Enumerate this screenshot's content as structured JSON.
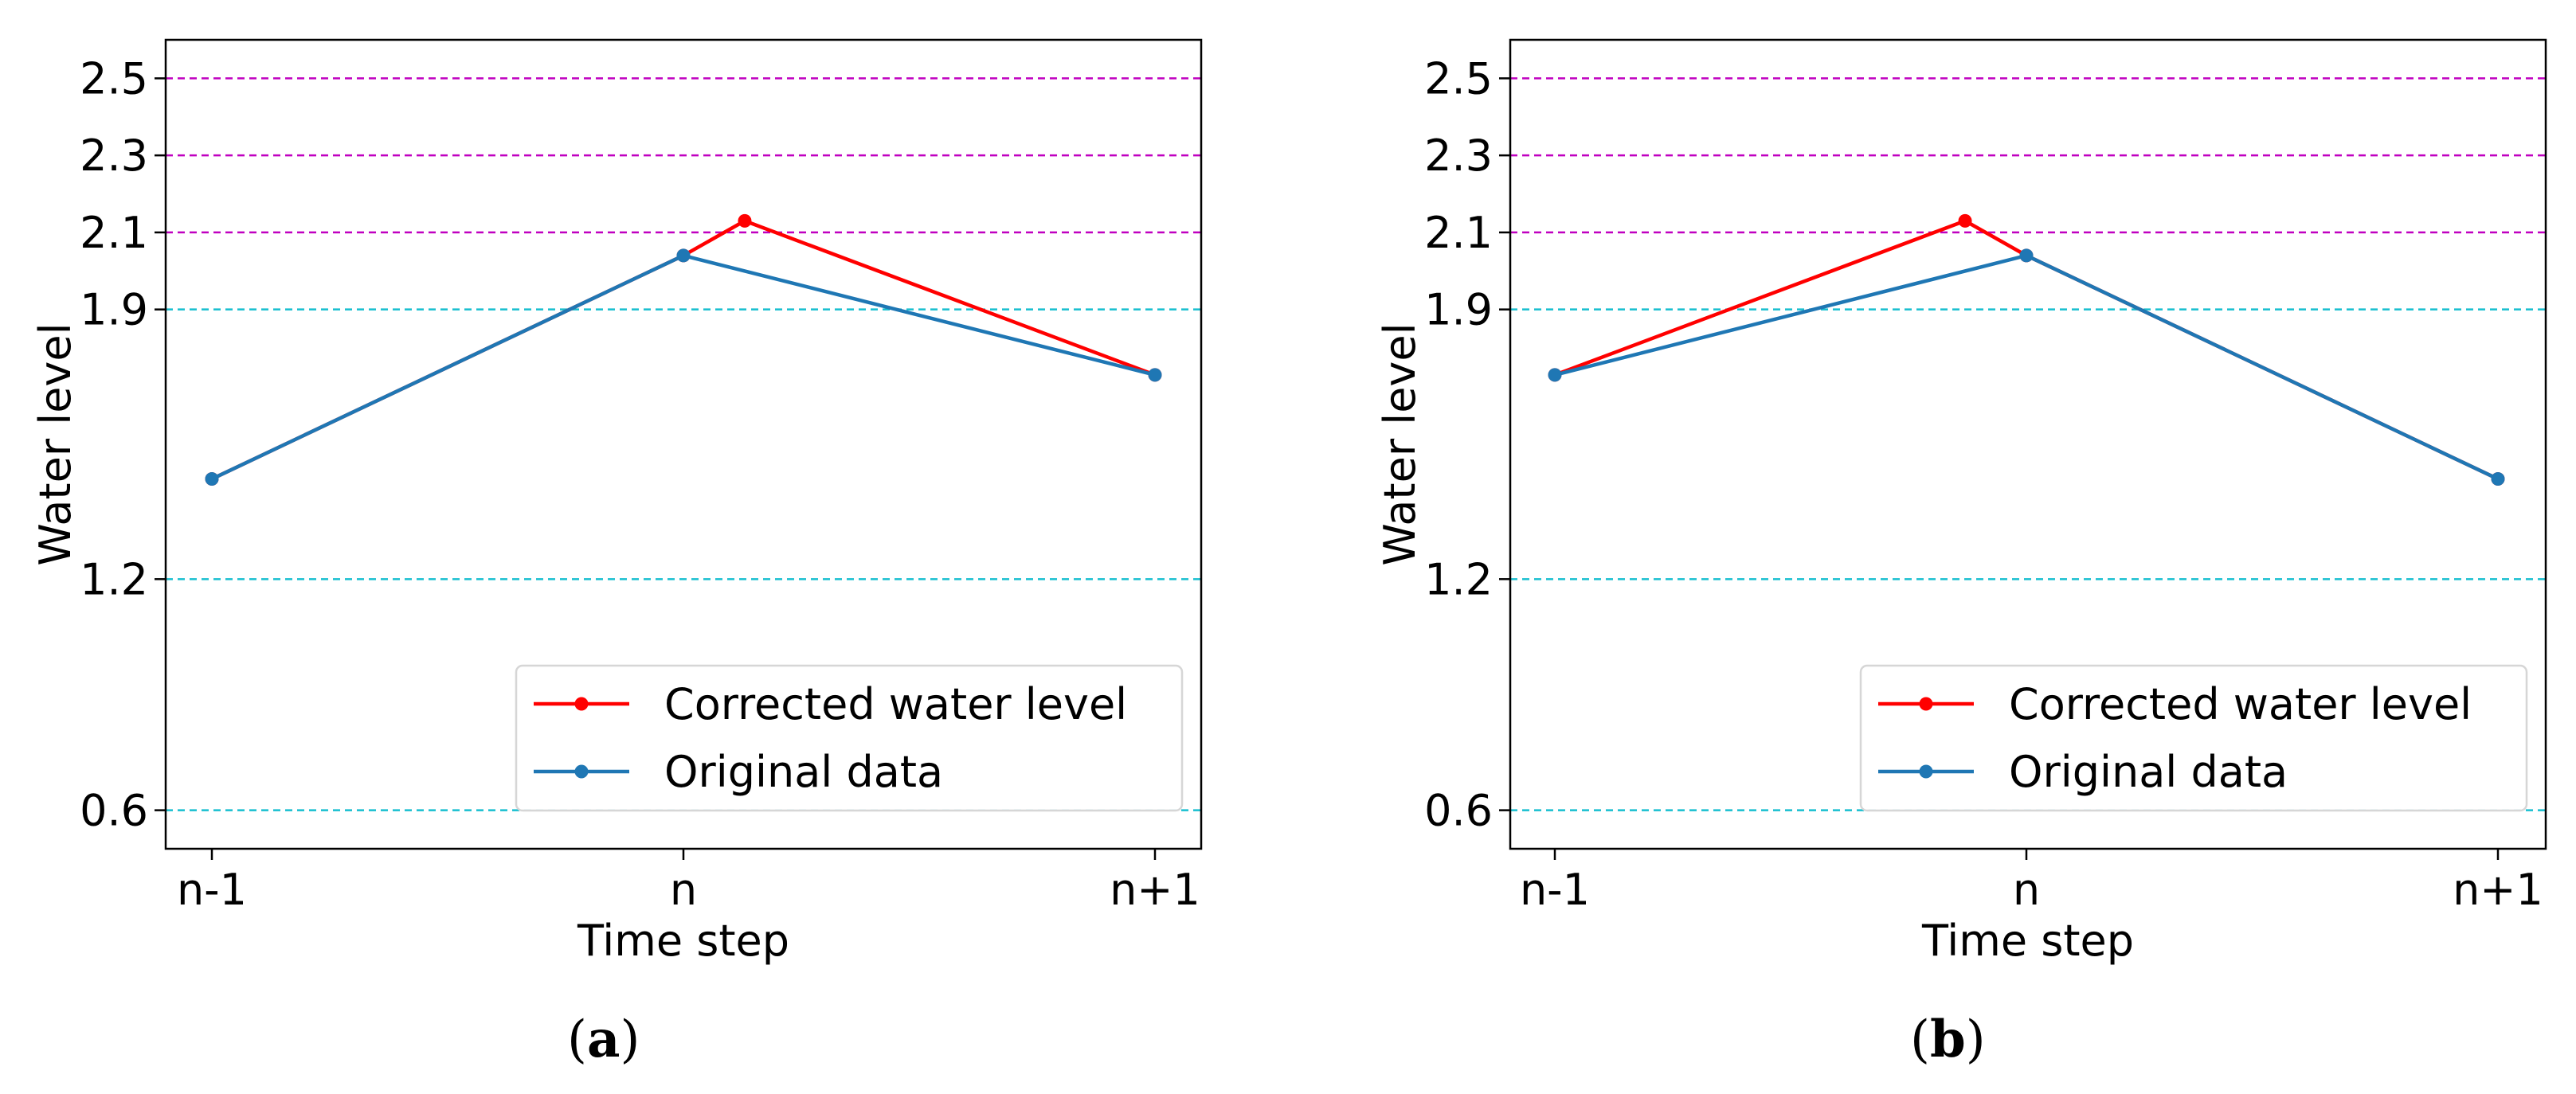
{
  "chart_data": [
    {
      "type": "line",
      "panel_label": "a",
      "xlabel": "Time step",
      "ylabel": "Water level",
      "categories": [
        "n-1",
        "n",
        "n+1"
      ],
      "yticks": [
        0.6,
        1.2,
        1.9,
        2.1,
        2.3,
        2.5
      ],
      "ylim": [
        0.5,
        2.6
      ],
      "grid": false,
      "threshold_lines": [
        {
          "y": 0.6,
          "color": "#17becf"
        },
        {
          "y": 1.2,
          "color": "#17becf"
        },
        {
          "y": 1.9,
          "color": "#17becf"
        },
        {
          "y": 2.1,
          "color": "#c000c0"
        },
        {
          "y": 2.3,
          "color": "#c000c0"
        },
        {
          "y": 2.5,
          "color": "#c000c0"
        }
      ],
      "series": [
        {
          "name": "Corrected water level",
          "color": "#ff0000",
          "points": [
            {
              "x": 0,
              "y": 1.46
            },
            {
              "x": 1,
              "y": 2.04
            },
            {
              "x": 1.13,
              "y": 2.13
            },
            {
              "x": 2,
              "y": 1.73
            }
          ]
        },
        {
          "name": "Original data",
          "color": "#1f77b4",
          "points": [
            {
              "x": 0,
              "y": 1.46
            },
            {
              "x": 1,
              "y": 2.04
            },
            {
              "x": 2,
              "y": 1.73
            }
          ]
        }
      ],
      "legend": "lower-right"
    },
    {
      "type": "line",
      "panel_label": "b",
      "xlabel": "Time step",
      "ylabel": "Water level",
      "categories": [
        "n-1",
        "n",
        "n+1"
      ],
      "yticks": [
        0.6,
        1.2,
        1.9,
        2.1,
        2.3,
        2.5
      ],
      "ylim": [
        0.5,
        2.6
      ],
      "grid": false,
      "threshold_lines": [
        {
          "y": 0.6,
          "color": "#17becf"
        },
        {
          "y": 1.2,
          "color": "#17becf"
        },
        {
          "y": 1.9,
          "color": "#17becf"
        },
        {
          "y": 2.1,
          "color": "#c000c0"
        },
        {
          "y": 2.3,
          "color": "#c000c0"
        },
        {
          "y": 2.5,
          "color": "#c000c0"
        }
      ],
      "series": [
        {
          "name": "Corrected water level",
          "color": "#ff0000",
          "points": [
            {
              "x": 0,
              "y": 1.73
            },
            {
              "x": 0.87,
              "y": 2.13
            },
            {
              "x": 1,
              "y": 2.04
            },
            {
              "x": 2,
              "y": 1.46
            }
          ]
        },
        {
          "name": "Original data",
          "color": "#1f77b4",
          "points": [
            {
              "x": 0,
              "y": 1.73
            },
            {
              "x": 1,
              "y": 2.04
            },
            {
              "x": 2,
              "y": 1.46
            }
          ]
        }
      ],
      "legend": "lower-right"
    }
  ]
}
